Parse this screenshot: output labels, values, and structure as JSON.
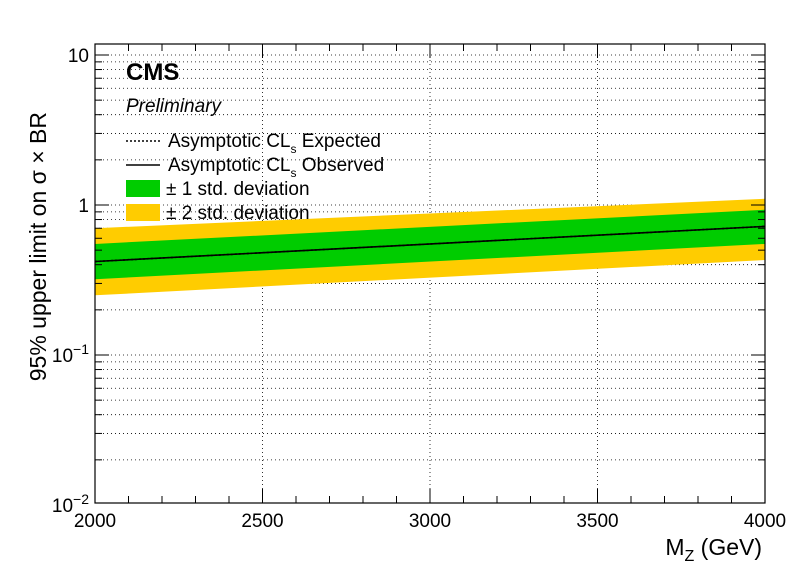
{
  "chart_data": {
    "type": "line",
    "experiment": "CMS",
    "status": "Preliminary",
    "xlabel_main": "M",
    "xlabel_sub": "Z",
    "xlabel_unit": " (GeV)",
    "ylabel": "95% upper limit on  σ × BR",
    "xlim": [
      2000,
      4000
    ],
    "ylim": [
      0.01,
      12
    ],
    "yscale": "log",
    "grid": true,
    "x_ticks": [
      "2000",
      "2500",
      "3000",
      "3500",
      "4000"
    ],
    "y_ticks": [
      {
        "base": "10",
        "exp": "−2",
        "value": 0.01
      },
      {
        "base": "10",
        "exp": "−1",
        "value": 0.1
      },
      {
        "base": "1",
        "exp": "",
        "value": 1
      },
      {
        "base": "10",
        "exp": "",
        "value": 10
      }
    ],
    "x": [
      2000,
      4000
    ],
    "series": [
      {
        "name": "Asymptotic CL_s Expected",
        "legend_main": "Asymptotic CL",
        "legend_sub": "s",
        "legend_tail": " Expected",
        "style": "dotted",
        "color": "#000000",
        "values": [
          0.42,
          0.72
        ]
      },
      {
        "name": "Asymptotic CL_s Observed",
        "legend_main": "Asymptotic CL",
        "legend_sub": "s",
        "legend_tail": " Observed",
        "style": "solid",
        "color": "#000000",
        "values": [
          0.42,
          0.72
        ]
      }
    ],
    "bands": [
      {
        "name": "± 1 std. deviation",
        "color": "#00cc00",
        "low": [
          0.32,
          0.55
        ],
        "high": [
          0.55,
          0.93
        ]
      },
      {
        "name": "± 2 std. deviation",
        "color": "#ffcc00",
        "low": [
          0.25,
          0.43
        ],
        "high": [
          0.7,
          1.1
        ]
      }
    ]
  }
}
